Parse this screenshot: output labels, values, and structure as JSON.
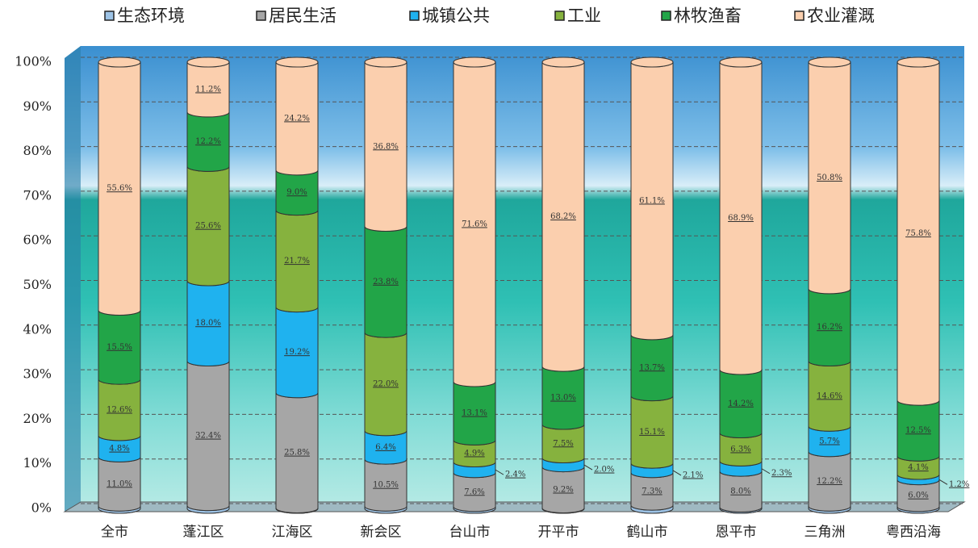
{
  "chart_data": {
    "type": "stacked_cylinder",
    "categories": [
      "全市",
      "蓬江区",
      "江海区",
      "新会区",
      "台山市",
      "开平市",
      "鹤山市",
      "恩平市",
      "三角洲",
      "粤西沿海"
    ],
    "series": [
      {
        "name": "生态环境",
        "color": "#9dc3e6",
        "values": [
          0.5,
          0.6,
          0.1,
          0.5,
          0.4,
          0.1,
          0.7,
          0.3,
          0.5,
          0.4
        ]
      },
      {
        "name": "居民生活",
        "color": "#a6a6a6",
        "values": [
          11.0,
          32.4,
          25.8,
          10.5,
          7.6,
          9.2,
          7.3,
          8.0,
          12.2,
          6.0
        ],
        "value_labels": [
          "11.0%",
          "32.4%",
          "25.8%",
          "10.5%",
          "7.6%",
          "9.2%",
          "7.3%",
          "8.0%",
          "12.2%",
          "6.0%"
        ]
      },
      {
        "name": "城镇公共",
        "color": "#1fb2ef",
        "values": [
          4.8,
          18.0,
          19.2,
          6.4,
          2.4,
          2.0,
          2.1,
          2.3,
          5.7,
          1.2
        ],
        "value_labels": [
          "4.8%",
          "18.0%",
          "19.2%",
          "6.4%",
          "2.4%",
          "2.0%",
          "2.1%",
          "2.3%",
          "5.7%",
          "1.2%"
        ]
      },
      {
        "name": "工业",
        "color": "#86b23e",
        "values": [
          12.6,
          25.6,
          21.7,
          22.0,
          4.9,
          7.5,
          15.1,
          6.3,
          14.6,
          4.1
        ],
        "value_labels": [
          "12.6%",
          "25.6%",
          "21.7%",
          "22.0%",
          "4.9%",
          "7.5%",
          "15.1%",
          "6.3%",
          "14.6%",
          "4.1%"
        ]
      },
      {
        "name": "林牧渔畜",
        "color": "#22a548",
        "values": [
          15.5,
          12.2,
          9.0,
          23.8,
          13.1,
          13.0,
          13.7,
          14.2,
          16.2,
          12.5
        ],
        "value_labels": [
          "15.5%",
          "12.2%",
          "9.0%",
          "23.8%",
          "13.1%",
          "13.0%",
          "13.7%",
          "14.2%",
          "16.2%",
          "12.5%"
        ]
      },
      {
        "name": "农业灌溉",
        "color": "#fbcfae",
        "values": [
          55.6,
          11.2,
          24.2,
          36.8,
          71.6,
          68.2,
          61.1,
          68.9,
          50.8,
          75.8
        ],
        "value_labels": [
          "55.6%",
          "11.2%",
          "24.2%",
          "36.8%",
          "71.6%",
          "68.2%",
          "61.1%",
          "68.9%",
          "50.8%",
          "75.8%"
        ]
      }
    ],
    "ylim": [
      0,
      100
    ],
    "yticks": [
      {
        "value": 0,
        "label": "0%"
      },
      {
        "value": 10,
        "label": "10%"
      },
      {
        "value": 20,
        "label": "20%"
      },
      {
        "value": 30,
        "label": "30%"
      },
      {
        "value": 40,
        "label": "40%"
      },
      {
        "value": 50,
        "label": "50%"
      },
      {
        "value": 60,
        "label": "60%"
      },
      {
        "value": 70,
        "label": "70%"
      },
      {
        "value": 80,
        "label": "80%"
      },
      {
        "value": 90,
        "label": "90%"
      },
      {
        "value": 100,
        "label": "100%"
      }
    ],
    "grid": true,
    "legend": "top"
  }
}
